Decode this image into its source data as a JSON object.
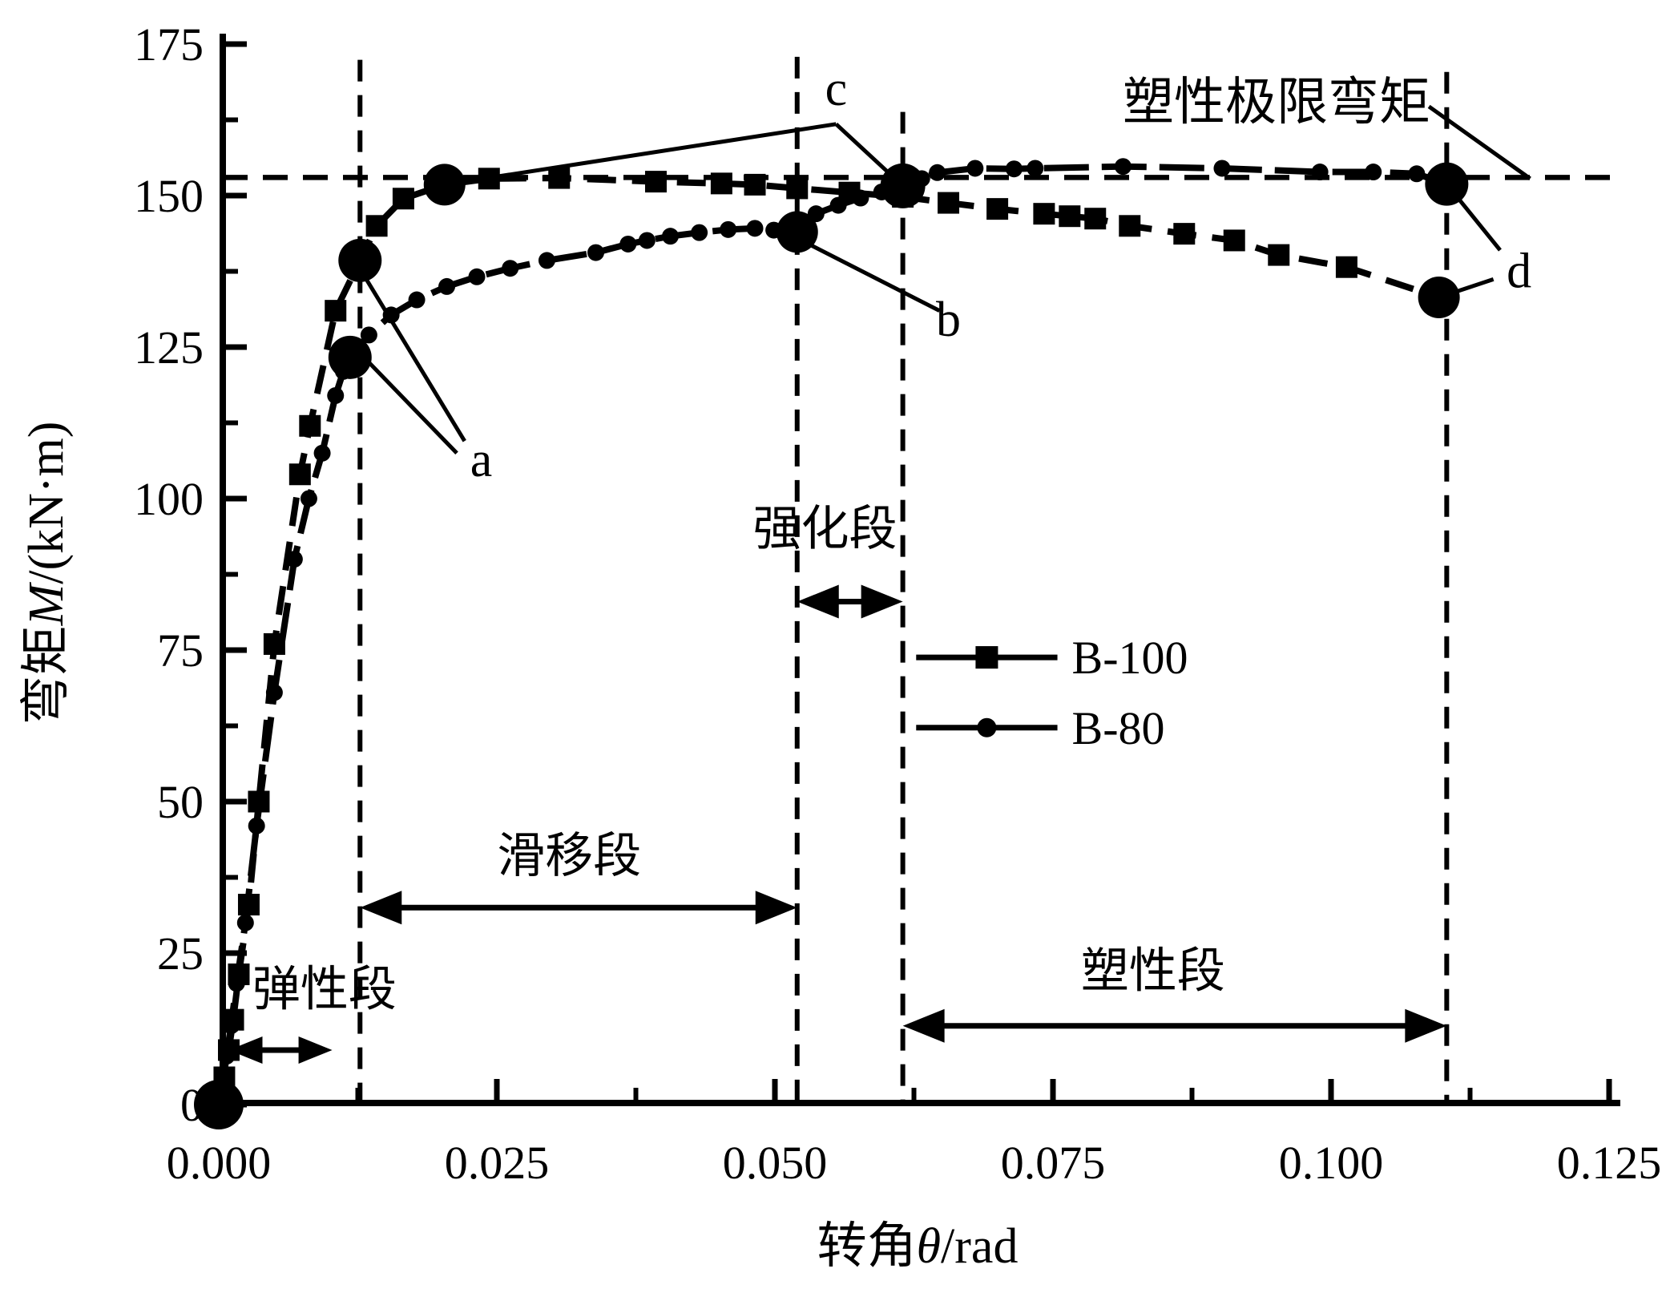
{
  "chart_data": {
    "type": "line",
    "title": "",
    "xlabel": {
      "prefix": "转角",
      "symbol": "θ",
      "suffix": "/rad"
    },
    "ylabel": {
      "prefix": "弯矩",
      "symbol": "M",
      "suffix": "/(kN·m)"
    },
    "xlim": [
      0,
      0.126
    ],
    "ylim": [
      0,
      176.5
    ],
    "grid": "off",
    "x_ticks": {
      "major": [
        0,
        0.025,
        0.05,
        0.075,
        0.1,
        0.125
      ],
      "minor": [
        0.0125,
        0.0375,
        0.0625,
        0.0875,
        0.1125
      ],
      "labels": [
        "0.000",
        "0.025",
        "0.050",
        "0.075",
        "0.100",
        "0.125"
      ]
    },
    "y_ticks": {
      "major": [
        0,
        25,
        50,
        75,
        100,
        125,
        150,
        175
      ],
      "minor": [
        12.5,
        37.5,
        62.5,
        87.5,
        112.5,
        137.5,
        162.5
      ],
      "labels": [
        "0",
        "25",
        "50",
        "75",
        "100",
        "125",
        "150",
        "175"
      ]
    },
    "reference_lines": {
      "horizontal_y": 153,
      "vertical_x": [
        0.0127,
        0.052,
        0.0615,
        0.1104
      ],
      "vertical_top_v": [
        172.4,
        172.9,
        163.8,
        170.4
      ]
    },
    "series": [
      {
        "name": "B-100",
        "marker": "square",
        "dash": "36 20",
        "x": [
          0,
          0.0005,
          0.0009,
          0.0013,
          0.0018,
          0.0027,
          0.0036,
          0.005,
          0.0073,
          0.0082,
          0.0105,
          0.0127,
          0.0142,
          0.0166,
          0.0203,
          0.0243,
          0.0306,
          0.0393,
          0.0452,
          0.0482,
          0.052,
          0.0567,
          0.0615,
          0.0656,
          0.07,
          0.0742,
          0.0765,
          0.0788,
          0.0819,
          0.0868,
          0.0913,
          0.0953,
          0.1014,
          0.1097
        ],
        "y": [
          0,
          4.5,
          9,
          14,
          21.5,
          33,
          50,
          76,
          104,
          112,
          131,
          139.3,
          145,
          149.5,
          151.8,
          152.8,
          152.9,
          152.3,
          152,
          151.8,
          151.2,
          150.5,
          149.8,
          148.8,
          147.8,
          147,
          146.6,
          146.2,
          145,
          143.7,
          142.6,
          140.2,
          138.2,
          133.2
        ]
      },
      {
        "name": "B-80",
        "marker": "circle",
        "dash": "56 16",
        "x": [
          0,
          0.0004,
          0.0007,
          0.0011,
          0.0016,
          0.0024,
          0.0034,
          0.005,
          0.0068,
          0.0081,
          0.0093,
          0.0105,
          0.0112,
          0.0118,
          0.0135,
          0.0155,
          0.0178,
          0.0205,
          0.0232,
          0.0262,
          0.0295,
          0.0339,
          0.0368,
          0.0385,
          0.0406,
          0.0432,
          0.0458,
          0.0482,
          0.0499,
          0.052,
          0.0537,
          0.0557,
          0.0577,
          0.0596,
          0.0615,
          0.0632,
          0.0646,
          0.068,
          0.0715,
          0.0734,
          0.0813,
          0.0902,
          0.099,
          0.1038,
          0.1077,
          0.1104
        ],
        "y": [
          0,
          4,
          8,
          13,
          20,
          30,
          46,
          68,
          90,
          100,
          107.5,
          117,
          121,
          123.3,
          127,
          130.3,
          132.8,
          135,
          136.6,
          138,
          139.3,
          140.6,
          142,
          142.6,
          143.3,
          143.9,
          144.4,
          144.6,
          144.3,
          144,
          147,
          148.4,
          149.6,
          150.6,
          151.6,
          152.8,
          153.8,
          154.5,
          154.4,
          154.5,
          154.8,
          154.5,
          153.9,
          153.9,
          153.6,
          151.9
        ]
      }
    ],
    "big_markers": [
      {
        "name": "origin-point",
        "x": 0,
        "y": 0,
        "r": 31
      },
      {
        "name": "point-a-b100",
        "x": 0.0127,
        "y": 139.3,
        "r": 27
      },
      {
        "name": "point-a-b80",
        "x": 0.0118,
        "y": 123.3,
        "r": 27
      },
      {
        "name": "point-c-b100",
        "x": 0.0203,
        "y": 151.8,
        "r": 26
      },
      {
        "name": "point-b-b80",
        "x": 0.052,
        "y": 144,
        "r": 26
      },
      {
        "name": "point-c-b80",
        "x": 0.0615,
        "y": 151.6,
        "r": 28
      },
      {
        "name": "point-d-b80",
        "x": 0.1104,
        "y": 151.9,
        "r": 27
      },
      {
        "name": "point-d-b100",
        "x": 0.1097,
        "y": 133.2,
        "r": 26
      }
    ],
    "annotations": [
      {
        "text": "a",
        "x": 0.0236,
        "y": 106.5,
        "leaders": [
          [
            [
              0.0221,
              109.5
            ],
            [
              0.013,
              137.0
            ]
          ],
          [
            [
              0.0214,
              107.5
            ],
            [
              0.0119,
              125.5
            ]
          ]
        ]
      },
      {
        "text": "b",
        "x": 0.0656,
        "y": 129.6,
        "leaders": [
          [
            [
              0.0648,
              131.0
            ],
            [
              0.0525,
              142.5
            ]
          ]
        ]
      },
      {
        "text": "c",
        "x": 0.0555,
        "y": 167.7,
        "leaders": [
          [
            [
              0.0555,
              161.8
            ],
            [
              0.0203,
              151.8
            ]
          ],
          [
            [
              0.0555,
              161.8
            ],
            [
              0.0615,
              151.6
            ]
          ]
        ]
      },
      {
        "text": "d",
        "x": 0.1169,
        "y": 137.6,
        "leaders": [
          [
            [
              0.1152,
              141.0
            ],
            [
              0.1104,
              151.9
            ]
          ],
          [
            [
              0.1146,
              136.2
            ],
            [
              0.1097,
              133.2
            ]
          ]
        ]
      }
    ],
    "plastic_limit_label": {
      "text": "塑性极限弯矩",
      "x": 0.0951,
      "y": 165.5,
      "font": 64,
      "leader": [
        [
          0.1088,
          164.7
        ],
        [
          0.1179,
          152.8
        ]
      ]
    },
    "regions": [
      {
        "label": "弹性段",
        "label_x": 0.0095,
        "label_y": 19,
        "arrow_x1": 0.0009,
        "arrow_x2": 0.0102,
        "arrow_y": 9,
        "head": 42
      },
      {
        "label": "滑移段",
        "label_x": 0.0315,
        "label_y": 41,
        "arrow_x1": 0.0127,
        "arrow_x2": 0.052,
        "arrow_y": 32.5,
        "head": 52
      },
      {
        "label": "强化段",
        "label_x": 0.0545,
        "label_y": 95,
        "arrow_x1": 0.052,
        "arrow_x2": 0.0615,
        "arrow_y": 83,
        "head": 52
      },
      {
        "label": "塑性段",
        "label_x": 0.084,
        "label_y": 22,
        "arrow_x1": 0.0615,
        "arrow_x2": 0.1104,
        "arrow_y": 13,
        "head": 52
      }
    ],
    "legend": {
      "entries": [
        {
          "label": "B-100",
          "marker": "square"
        },
        {
          "label": "B-80",
          "marker": "circle"
        }
      ],
      "x1": 0.0627,
      "x2": 0.0754,
      "rows_y": [
        73.8,
        62.2
      ]
    },
    "colors": {
      "foreground": "#000000",
      "background": "#ffffff"
    }
  }
}
